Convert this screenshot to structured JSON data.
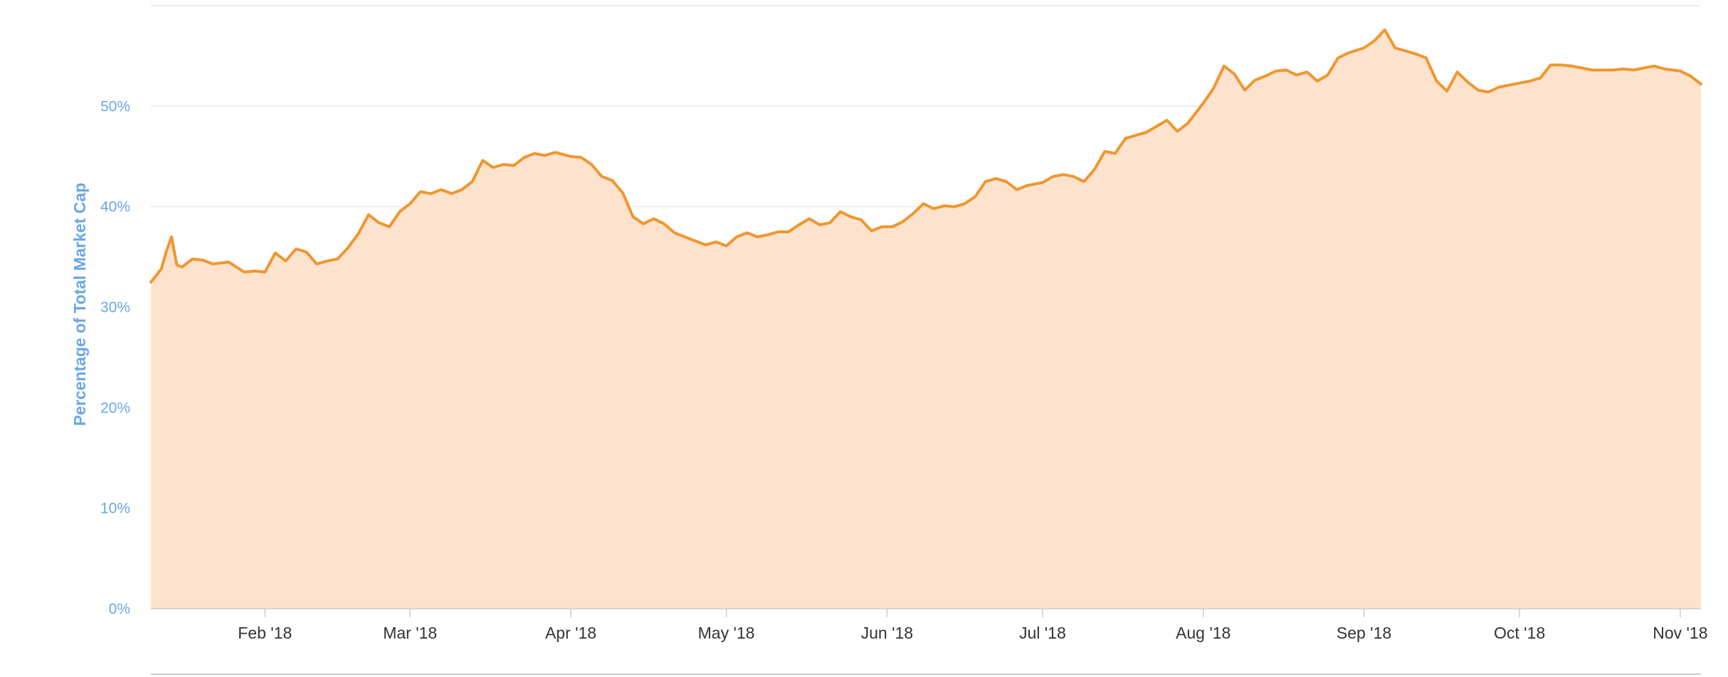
{
  "chart_data": {
    "type": "area",
    "title": "",
    "xlabel": "",
    "ylabel": "Percentage of Total Market Cap",
    "y_unit": "%",
    "ylim": [
      0,
      60
    ],
    "yticks": [
      0,
      10,
      20,
      30,
      40,
      50
    ],
    "ytick_labels": [
      "0%",
      "10%",
      "20%",
      "30%",
      "40%",
      "50%"
    ],
    "xlim": [
      "2018-01-10",
      "2018-11-05"
    ],
    "xticks": [
      "2018-02-01",
      "2018-03-01",
      "2018-04-01",
      "2018-05-01",
      "2018-06-01",
      "2018-07-01",
      "2018-08-01",
      "2018-09-01",
      "2018-10-01",
      "2018-11-01"
    ],
    "xtick_labels": [
      "Feb '18",
      "Mar '18",
      "Apr '18",
      "May '18",
      "Jun '18",
      "Jul '18",
      "Aug '18",
      "Sep '18",
      "Oct '18",
      "Nov '18"
    ],
    "grid": true,
    "legend": "none",
    "colors": {
      "line": "#f0962f",
      "fill": "#fde3cd"
    },
    "series": [
      {
        "x": [
          "2018-01-10",
          "2018-01-12",
          "2018-01-13",
          "2018-01-14",
          "2018-01-15",
          "2018-01-16",
          "2018-01-18",
          "2018-01-20",
          "2018-01-22",
          "2018-01-25",
          "2018-01-28",
          "2018-01-30",
          "2018-02-01",
          "2018-02-03",
          "2018-02-05",
          "2018-02-07",
          "2018-02-09",
          "2018-02-11",
          "2018-02-13",
          "2018-02-15",
          "2018-02-17",
          "2018-02-19",
          "2018-02-21",
          "2018-02-23",
          "2018-02-25",
          "2018-02-27",
          "2018-03-01",
          "2018-03-03",
          "2018-03-05",
          "2018-03-07",
          "2018-03-09",
          "2018-03-11",
          "2018-03-13",
          "2018-03-15",
          "2018-03-17",
          "2018-03-19",
          "2018-03-21",
          "2018-03-23",
          "2018-03-25",
          "2018-03-27",
          "2018-03-29",
          "2018-04-01",
          "2018-04-03",
          "2018-04-05",
          "2018-04-07",
          "2018-04-09",
          "2018-04-11",
          "2018-04-13",
          "2018-04-15",
          "2018-04-17",
          "2018-04-19",
          "2018-04-21",
          "2018-04-23",
          "2018-04-25",
          "2018-04-27",
          "2018-04-29",
          "2018-05-01",
          "2018-05-03",
          "2018-05-05",
          "2018-05-07",
          "2018-05-09",
          "2018-05-11",
          "2018-05-13",
          "2018-05-15",
          "2018-05-17",
          "2018-05-19",
          "2018-05-21",
          "2018-05-23",
          "2018-05-25",
          "2018-05-27",
          "2018-05-29",
          "2018-05-31",
          "2018-06-02",
          "2018-06-04",
          "2018-06-06",
          "2018-06-08",
          "2018-06-10",
          "2018-06-12",
          "2018-06-14",
          "2018-06-16",
          "2018-06-18",
          "2018-06-20",
          "2018-06-22",
          "2018-06-24",
          "2018-06-26",
          "2018-06-28",
          "2018-07-01",
          "2018-07-03",
          "2018-07-05",
          "2018-07-07",
          "2018-07-09",
          "2018-07-11",
          "2018-07-13",
          "2018-07-15",
          "2018-07-17",
          "2018-07-19",
          "2018-07-21",
          "2018-07-23",
          "2018-07-25",
          "2018-07-27",
          "2018-07-29",
          "2018-08-01",
          "2018-08-03",
          "2018-08-05",
          "2018-08-07",
          "2018-08-09",
          "2018-08-11",
          "2018-08-13",
          "2018-08-15",
          "2018-08-17",
          "2018-08-19",
          "2018-08-21",
          "2018-08-23",
          "2018-08-25",
          "2018-08-27",
          "2018-08-29",
          "2018-09-01",
          "2018-09-03",
          "2018-09-05",
          "2018-09-07",
          "2018-09-09",
          "2018-09-11",
          "2018-09-13",
          "2018-09-15",
          "2018-09-17",
          "2018-09-19",
          "2018-09-21",
          "2018-09-23",
          "2018-09-25",
          "2018-09-27",
          "2018-09-29",
          "2018-10-01",
          "2018-10-03",
          "2018-10-05",
          "2018-10-07",
          "2018-10-09",
          "2018-10-11",
          "2018-10-13",
          "2018-10-15",
          "2018-10-17",
          "2018-10-19",
          "2018-10-21",
          "2018-10-23",
          "2018-10-25",
          "2018-10-27",
          "2018-10-29",
          "2018-11-01",
          "2018-11-03",
          "2018-11-05"
        ],
        "y": [
          32.5,
          33.8,
          35.6,
          37.0,
          34.2,
          34.0,
          34.8,
          34.7,
          34.3,
          34.5,
          33.5,
          33.6,
          33.5,
          35.4,
          34.6,
          35.8,
          35.5,
          34.3,
          34.6,
          34.8,
          35.9,
          37.3,
          39.2,
          38.4,
          38.0,
          39.5,
          40.3,
          41.5,
          41.3,
          41.7,
          41.3,
          41.7,
          42.5,
          44.6,
          43.9,
          44.2,
          44.1,
          44.9,
          45.3,
          45.1,
          45.4,
          45.0,
          44.9,
          44.2,
          43.0,
          42.6,
          41.4,
          39.0,
          38.3,
          38.8,
          38.3,
          37.4,
          37.0,
          36.6,
          36.2,
          36.5,
          36.1,
          37.0,
          37.4,
          37.0,
          37.2,
          37.5,
          37.5,
          38.2,
          38.8,
          38.2,
          38.4,
          39.5,
          39.0,
          38.7,
          37.6,
          38.0,
          38.0,
          38.5,
          39.3,
          40.3,
          39.8,
          40.1,
          40.0,
          40.3,
          41.0,
          42.5,
          42.8,
          42.5,
          41.7,
          42.1,
          42.4,
          43.0,
          43.2,
          43.0,
          42.5,
          43.7,
          45.5,
          45.3,
          46.8,
          47.1,
          47.4,
          48.0,
          48.6,
          47.5,
          48.3,
          50.3,
          51.8,
          54.0,
          53.2,
          51.6,
          52.6,
          53.0,
          53.5,
          53.6,
          53.1,
          53.4,
          52.5,
          53.1,
          54.8,
          55.3,
          55.8,
          56.5,
          57.6,
          55.8,
          55.5,
          55.2,
          54.8,
          52.5,
          51.5,
          53.4,
          52.4,
          51.6,
          51.4,
          51.9,
          52.1,
          52.3,
          52.5,
          52.8,
          54.1,
          54.1,
          54.0,
          53.8,
          53.6,
          53.6,
          53.6,
          53.7,
          53.6,
          53.8,
          54.0,
          53.7,
          53.5,
          53.0,
          52.2
        ]
      }
    ]
  }
}
